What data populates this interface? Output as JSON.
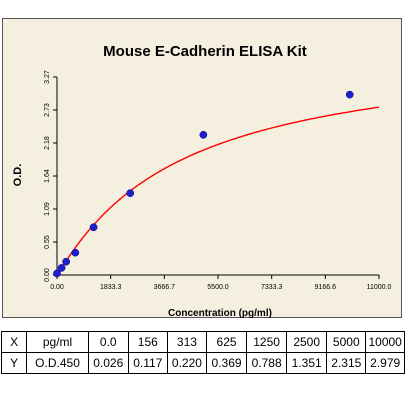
{
  "chart_data": {
    "type": "scatter",
    "title": "Mouse E-Cadherin ELISA Kit",
    "xlabel": "Concentration (pg/ml)",
    "ylabel": "O.D.",
    "xlim": [
      0,
      11000
    ],
    "ylim": [
      0,
      3.27
    ],
    "x_ticks": [
      "0.00",
      "1833.3",
      "3666.7",
      "5500.0",
      "7333.3",
      "9166.6",
      "11000.0"
    ],
    "y_ticks": [
      "0.00",
      "0.55",
      "1.09",
      "1.64",
      "2.18",
      "2.73",
      "3.27"
    ],
    "grid": false,
    "series": [
      {
        "x": [
          0,
          156,
          313,
          625,
          1250,
          2500,
          5000,
          10000
        ],
        "y": [
          0.026,
          0.117,
          0.22,
          0.369,
          0.788,
          1.351,
          2.315,
          2.979
        ]
      }
    ],
    "fit_curve": {
      "type": "4-parameter logistic",
      "color": "#ff0000"
    },
    "point_color": "#1f1fcf"
  },
  "table": {
    "rows": [
      [
        "X",
        "pg/ml",
        "0.0",
        "156",
        "313",
        "625",
        "1250",
        "2500",
        "5000",
        "10000"
      ],
      [
        "Y",
        "O.D.450",
        "0.026",
        "0.117",
        "0.220",
        "0.369",
        "0.788",
        "1.351",
        "2.315",
        "2.979"
      ]
    ]
  }
}
